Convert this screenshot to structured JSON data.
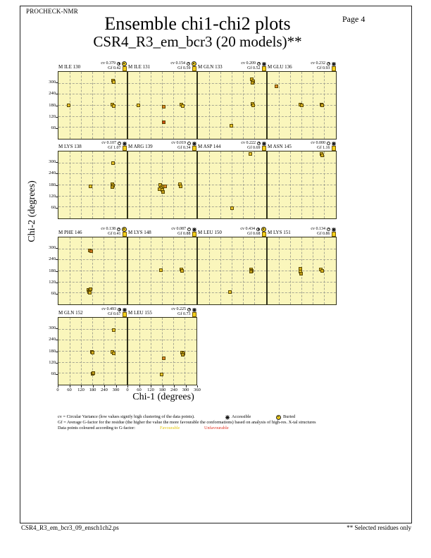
{
  "page": {
    "app_label": "PROCHECK-NMR",
    "page_label": "Page  4",
    "title": "Ensemble chi1-chi2 plots",
    "subtitle": "CSR4_R3_em_bcr3 (20 models)**",
    "footer_left": "CSR4_R3_em_bcr3_09_ensch1ch2.ps",
    "footer_right": "** Selected residues only"
  },
  "legend": {
    "line1": "cv = Circular Variance (low values signify high clustering of the data points).",
    "accessible_label": "Accessible",
    "buried_label": "Buried",
    "line2": "Gf = Average G-factor for the residue (the higher the value the more favourable the conformations)  based on analysis of high-res. X-tal structures",
    "line3": "Data points coloured according to G-factor:",
    "favourable_label": "Favourable",
    "unfavourable_label": "Unfavourable"
  },
  "chart_data": {
    "type": "scatter",
    "xlabel": "Chi-1 (degrees)",
    "ylabel": "Chi-2 (degrees)",
    "xlim": [
      0,
      360
    ],
    "ylim": [
      0,
      360
    ],
    "xticks": [
      0,
      60,
      120,
      180,
      240,
      300,
      360
    ],
    "grid_ticks": [
      60,
      120,
      180,
      240,
      300
    ],
    "grid": "dashed",
    "plot_bg": "#FAF6BC",
    "point_colors": {
      "y1": "#E7C428",
      "y2": "#D4AF1F",
      "y3": "#BC9A17",
      "o1": "#DE8628",
      "o2": "#CE6E1E",
      "r1": "#CC4A12"
    },
    "plots": [
      {
        "residue": "M ILE 130",
        "cv": "0.379",
        "gf": "0.42",
        "burial": "Buried",
        "row": 0,
        "col": 0,
        "points": [
          [
            55,
            180,
            "y1"
          ],
          [
            291,
            314,
            "y2"
          ],
          [
            295,
            305,
            "y1"
          ],
          [
            288,
            182,
            "y2"
          ],
          [
            293,
            174,
            "y1"
          ]
        ]
      },
      {
        "residue": "M ILE 131",
        "cv": "0.154",
        "gf": "0.59",
        "burial": "Buried",
        "row": 0,
        "col": 1,
        "points": [
          [
            56,
            178,
            "y1"
          ],
          [
            191,
            172,
            "o1"
          ],
          [
            190,
            88,
            "r1"
          ],
          [
            282,
            182,
            "y2"
          ],
          [
            290,
            176,
            "y1"
          ]
        ]
      },
      {
        "residue": "M GLN 133",
        "cv": "0.209",
        "gf": "0.52",
        "burial": "Accessible",
        "row": 0,
        "col": 2,
        "points": [
          [
            286,
            318,
            "y2"
          ],
          [
            294,
            310,
            "y1"
          ],
          [
            289,
            302,
            "y3"
          ],
          [
            290,
            186,
            "y1"
          ],
          [
            295,
            178,
            "y2"
          ],
          [
            179,
            66,
            "y1"
          ]
        ]
      },
      {
        "residue": "M GLU 136",
        "cv": "0.232",
        "gf": "0.93",
        "burial": "Accessible",
        "row": 0,
        "col": 3,
        "points": [
          [
            45,
            283,
            "o1"
          ],
          [
            176,
            182,
            "y1"
          ],
          [
            182,
            177,
            "y2"
          ],
          [
            286,
            182,
            "y1"
          ],
          [
            292,
            177,
            "y2"
          ]
        ]
      },
      {
        "residue": "M LYS 138",
        "cv": "0.107",
        "gf": "1.07",
        "burial": "Accessible",
        "row": 1,
        "col": 0,
        "points": [
          [
            172,
            170,
            "y1"
          ],
          [
            291,
            296,
            "y1"
          ],
          [
            286,
            182,
            "y2"
          ],
          [
            292,
            176,
            "y1"
          ],
          [
            288,
            168,
            "y3"
          ]
        ]
      },
      {
        "residue": "M ARG 139",
        "cv": "0.019",
        "gf": "0.34",
        "burial": "Accessible",
        "row": 1,
        "col": 1,
        "points": [
          [
            170,
            178,
            "y1"
          ],
          [
            180,
            172,
            "y2"
          ],
          [
            175,
            162,
            "y3"
          ],
          [
            188,
            170,
            "y1"
          ],
          [
            182,
            152,
            "y2"
          ],
          [
            195,
            170,
            "o1"
          ],
          [
            168,
            156,
            "y2"
          ],
          [
            185,
            140,
            "y3"
          ],
          [
            277,
            183,
            "y1"
          ],
          [
            280,
            170,
            "y2"
          ]
        ]
      },
      {
        "residue": "M ASP 144",
        "cv": "0.222",
        "gf": "0.69",
        "burial": "Accessible",
        "row": 1,
        "col": 2,
        "points": [
          [
            281,
            347,
            "y1"
          ],
          [
            180,
            52,
            "y1"
          ]
        ]
      },
      {
        "residue": "M ASN 145",
        "cv": "0.000",
        "gf": "1.16",
        "burial": "Accessible",
        "row": 1,
        "col": 3,
        "points": [
          [
            285,
            346,
            "y1"
          ],
          [
            290,
            339,
            "y2"
          ]
        ]
      },
      {
        "residue": "M PHE 146",
        "cv": "0.138",
        "gf": "0.41",
        "burial": "Buried",
        "row": 2,
        "col": 0,
        "points": [
          [
            168,
            290,
            "o1"
          ],
          [
            175,
            284,
            "o2"
          ],
          [
            158,
            76,
            "y3"
          ],
          [
            166,
            70,
            "y1"
          ],
          [
            162,
            62,
            "y2"
          ],
          [
            171,
            80,
            "y3"
          ],
          [
            168,
            58,
            "y2"
          ]
        ]
      },
      {
        "residue": "M LYS 148",
        "cv": "0.087",
        "gf": "0.88",
        "burial": "Accessible",
        "row": 2,
        "col": 1,
        "points": [
          [
            176,
            181,
            "y1"
          ],
          [
            282,
            185,
            "y1"
          ],
          [
            288,
            179,
            "y2"
          ]
        ]
      },
      {
        "residue": "M LEU 150",
        "cv": "0.434",
        "gf": "0.68",
        "burial": "Buried",
        "row": 2,
        "col": 2,
        "points": [
          [
            282,
            186,
            "y2"
          ],
          [
            288,
            180,
            "y1"
          ],
          [
            284,
            173,
            "y3"
          ],
          [
            172,
            64,
            "y1"
          ]
        ]
      },
      {
        "residue": "M LYS 151",
        "cv": "0.134",
        "gf": "0.86",
        "burial": "Accessible",
        "row": 2,
        "col": 3,
        "points": [
          [
            176,
            188,
            "y2"
          ],
          [
            174,
            176,
            "y1"
          ],
          [
            178,
            164,
            "y3"
          ],
          [
            284,
            185,
            "y1"
          ],
          [
            289,
            179,
            "y2"
          ]
        ]
      },
      {
        "residue": "M GLN 152",
        "cv": "0.493",
        "gf": "0.67",
        "burial": "Accessible",
        "row": 3,
        "col": 0,
        "points": [
          [
            296,
            294,
            "y1"
          ],
          [
            177,
            174,
            "y1"
          ],
          [
            182,
            169,
            "y2"
          ],
          [
            287,
            174,
            "y1"
          ],
          [
            293,
            168,
            "y2"
          ],
          [
            180,
            55,
            "y1"
          ],
          [
            185,
            60,
            "y3"
          ]
        ]
      },
      {
        "residue": "M LEU 155",
        "cv": "0.225",
        "gf": "0.73",
        "burial": "Accessible",
        "row": 3,
        "col": 1,
        "points": [
          [
            188,
            140,
            "o1"
          ],
          [
            177,
            52,
            "y1"
          ],
          [
            286,
            172,
            "y1"
          ],
          [
            293,
            166,
            "y2"
          ],
          [
            289,
            158,
            "y3"
          ]
        ]
      }
    ]
  }
}
